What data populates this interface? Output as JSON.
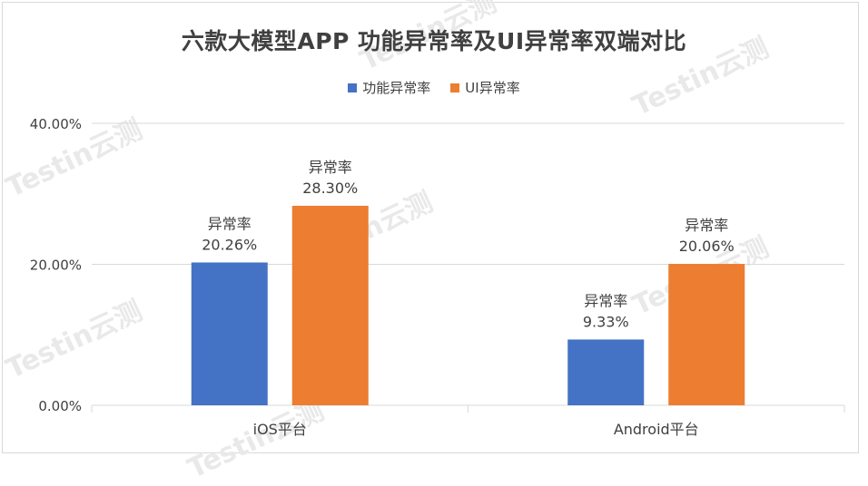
{
  "title": "六款大模型APP 功能异常率及UI异常率双端对比",
  "watermark": "Testin云测",
  "colors": {
    "series1": "#4472C4",
    "series2": "#ED7D31",
    "grid": "#d9d9d9",
    "text": "#404040"
  },
  "chart_data": {
    "type": "bar",
    "categories": [
      "iOS平台",
      "Android平台"
    ],
    "series": [
      {
        "name": "功能异常率",
        "values": [
          20.26,
          9.33
        ],
        "labels": [
          "20.26%",
          "9.33%"
        ]
      },
      {
        "name": "UI异常率",
        "values": [
          28.3,
          20.06
        ],
        "labels": [
          "28.30%",
          "20.06%"
        ]
      }
    ],
    "data_label_prefix": "异常率",
    "ylim": [
      0,
      40
    ],
    "yticks": [
      0,
      20,
      40
    ],
    "ytick_labels": [
      "0.00%",
      "20.00%",
      "40.00%"
    ],
    "grid": true,
    "legend_position": "top"
  }
}
